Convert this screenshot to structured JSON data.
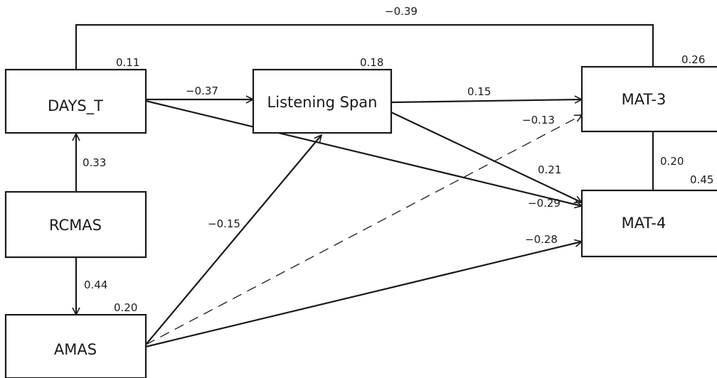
{
  "nodes": {
    "days_t": {
      "label": "DAYS_T",
      "r2": "0.11"
    },
    "rcmas": {
      "label": "RCMAS"
    },
    "amas": {
      "label": "AMAS",
      "r2": "0.20"
    },
    "listening": {
      "label": "Listening Span",
      "r2": "0.18"
    },
    "mat3": {
      "label": "MAT-3",
      "r2": "0.26"
    },
    "mat4": {
      "label": "MAT-4",
      "r2": "0.45"
    }
  },
  "paths": {
    "days_mat3": "−0.39",
    "days_listening": "−0.37",
    "rcmas_days": "0.33",
    "rcmas_amas": "0.44",
    "amas_listening": "−0.15",
    "listening_mat3": "0.15",
    "amas_mat3": "−0.13",
    "listening_mat4": "0.21",
    "days_mat4": "−0.29",
    "amas_mat4": "−0.28",
    "mat3_mat4": "0.20"
  },
  "colors": {
    "stroke": "#1a1a1a",
    "background": "#ffffff"
  }
}
